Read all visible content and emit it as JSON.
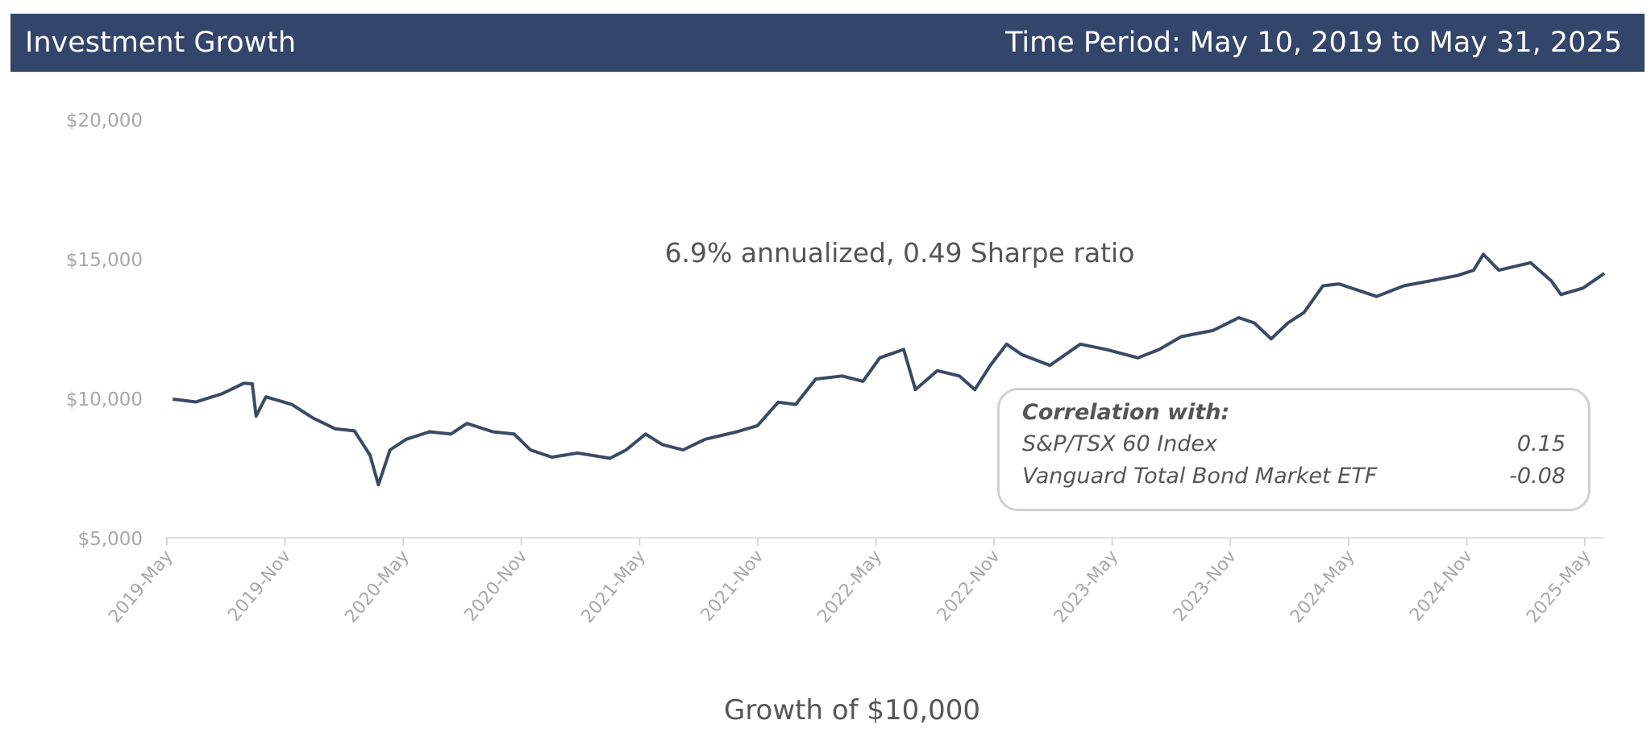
{
  "header": {
    "title": "Investment Growth",
    "period": "Time Period: May 10, 2019 to May 31, 2025"
  },
  "correlation": {
    "title": "Correlation with:",
    "rows": [
      {
        "name": "S&P/TSX 60 Index",
        "value": "0.15"
      },
      {
        "name": "Vanguard Total Bond Market ETF",
        "value": "-0.08"
      }
    ]
  },
  "colors": {
    "header": "#33456b",
    "line": "#3b4a63"
  },
  "chart_data": {
    "type": "line",
    "title": "",
    "annotation": "6.9% annualized, 0.49 Sharpe ratio",
    "xlabel": "Growth of $10,000",
    "ylabel": "",
    "ylim": [
      5000,
      20000
    ],
    "yticks": [
      {
        "value": 20000,
        "label": "$20,000"
      },
      {
        "value": 15000,
        "label": "$15,000"
      },
      {
        "value": 10000,
        "label": "$10,000"
      },
      {
        "value": 5000,
        "label": "$5,000"
      }
    ],
    "xticks": [
      "2019-May",
      "2019-Nov",
      "2020-May",
      "2020-Nov",
      "2021-May",
      "2021-Nov",
      "2022-May",
      "2022-Nov",
      "2023-May",
      "2023-Nov",
      "2024-May",
      "2024-Nov",
      "2025-May"
    ],
    "grid": false,
    "series": [
      {
        "points": [
          [
            "2019-05-10",
            10000
          ],
          [
            "2019-06-15",
            9900
          ],
          [
            "2019-07-25",
            10190
          ],
          [
            "2019-08-28",
            10570
          ],
          [
            "2019-09-10",
            10550
          ],
          [
            "2019-09-16",
            9390
          ],
          [
            "2019-10-01",
            10080
          ],
          [
            "2019-11-10",
            9810
          ],
          [
            "2019-12-13",
            9320
          ],
          [
            "2020-01-16",
            8940
          ],
          [
            "2020-02-15",
            8860
          ],
          [
            "2020-03-10",
            7990
          ],
          [
            "2020-03-23",
            6930
          ],
          [
            "2020-04-10",
            8180
          ],
          [
            "2020-05-05",
            8560
          ],
          [
            "2020-06-10",
            8830
          ],
          [
            "2020-07-13",
            8750
          ],
          [
            "2020-08-07",
            9130
          ],
          [
            "2020-09-16",
            8830
          ],
          [
            "2020-10-19",
            8750
          ],
          [
            "2020-11-13",
            8180
          ],
          [
            "2020-12-16",
            7920
          ],
          [
            "2021-01-25",
            8070
          ],
          [
            "2021-03-16",
            7880
          ],
          [
            "2021-04-10",
            8180
          ],
          [
            "2021-05-10",
            8750
          ],
          [
            "2021-06-05",
            8370
          ],
          [
            "2021-07-07",
            8180
          ],
          [
            "2021-08-10",
            8560
          ],
          [
            "2021-09-28",
            8830
          ],
          [
            "2021-10-30",
            9050
          ],
          [
            "2021-12-01",
            9890
          ],
          [
            "2021-12-28",
            9810
          ],
          [
            "2022-01-28",
            10720
          ],
          [
            "2022-03-10",
            10830
          ],
          [
            "2022-04-11",
            10640
          ],
          [
            "2022-05-07",
            11480
          ],
          [
            "2022-06-13",
            11780
          ],
          [
            "2022-07-01",
            10340
          ],
          [
            "2022-08-04",
            11020
          ],
          [
            "2022-09-07",
            10830
          ],
          [
            "2022-10-01",
            10340
          ],
          [
            "2022-10-25",
            11210
          ],
          [
            "2022-11-19",
            11970
          ],
          [
            "2022-12-13",
            11590
          ],
          [
            "2023-01-25",
            11210
          ],
          [
            "2023-03-13",
            11970
          ],
          [
            "2023-04-22",
            11780
          ],
          [
            "2023-06-10",
            11480
          ],
          [
            "2023-07-13",
            11780
          ],
          [
            "2023-08-16",
            12240
          ],
          [
            "2023-10-04",
            12460
          ],
          [
            "2023-11-13",
            12920
          ],
          [
            "2023-12-07",
            12730
          ],
          [
            "2024-01-02",
            12160
          ],
          [
            "2024-01-28",
            12730
          ],
          [
            "2024-02-22",
            13110
          ],
          [
            "2024-03-22",
            14060
          ],
          [
            "2024-04-16",
            14130
          ],
          [
            "2024-06-13",
            13680
          ],
          [
            "2024-07-25",
            14060
          ],
          [
            "2024-09-04",
            14240
          ],
          [
            "2024-10-16",
            14430
          ],
          [
            "2024-11-10",
            14620
          ],
          [
            "2024-11-25",
            15190
          ],
          [
            "2024-12-19",
            14620
          ],
          [
            "2025-02-06",
            14890
          ],
          [
            "2025-03-10",
            14240
          ],
          [
            "2025-03-25",
            13750
          ],
          [
            "2025-04-28",
            13980
          ],
          [
            "2025-05-31",
            14510
          ]
        ]
      }
    ]
  }
}
